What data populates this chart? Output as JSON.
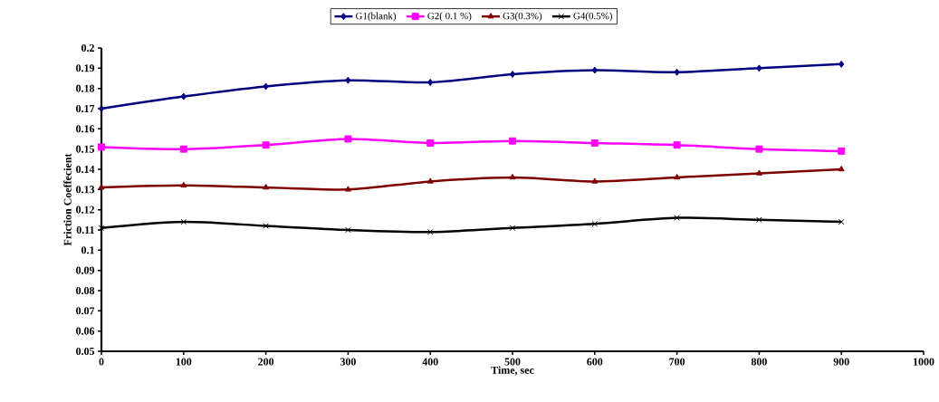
{
  "chart_data": {
    "type": "line",
    "xlabel": "Time, sec",
    "ylabel": "Friction Coeffecient",
    "x": [
      0,
      100,
      200,
      300,
      400,
      500,
      600,
      700,
      800,
      900
    ],
    "series": [
      {
        "name": "G1(blank)",
        "color": "#000080",
        "marker": "diamond",
        "values": [
          0.17,
          0.176,
          0.181,
          0.184,
          0.183,
          0.187,
          0.189,
          0.188,
          0.19,
          0.192
        ]
      },
      {
        "name": "G2( 0.1 %)",
        "color": "#ff00ff",
        "marker": "square",
        "values": [
          0.151,
          0.15,
          0.152,
          0.155,
          0.153,
          0.154,
          0.153,
          0.152,
          0.15,
          0.149
        ]
      },
      {
        "name": "G3(0.3%)",
        "color": "#800000",
        "marker": "triangle",
        "values": [
          0.131,
          0.132,
          0.131,
          0.13,
          0.134,
          0.136,
          0.134,
          0.136,
          0.138,
          0.14
        ]
      },
      {
        "name": "G4(0.5%)",
        "color": "#000000",
        "marker": "cross",
        "values": [
          0.111,
          0.114,
          0.112,
          0.11,
          0.109,
          0.111,
          0.113,
          0.116,
          0.115,
          0.114
        ]
      }
    ],
    "xlim": [
      0,
      1000
    ],
    "xticks": [
      0,
      100,
      200,
      300,
      400,
      500,
      600,
      700,
      800,
      900,
      1000
    ],
    "ylim": [
      0.05,
      0.2
    ],
    "yticks": [
      0.05,
      0.06,
      0.07,
      0.08,
      0.09,
      0.1,
      0.11,
      0.12,
      0.13,
      0.14,
      0.15,
      0.16,
      0.17,
      0.18,
      0.19,
      0.2
    ],
    "grid": false,
    "legend": "top",
    "line_style": "solid"
  }
}
